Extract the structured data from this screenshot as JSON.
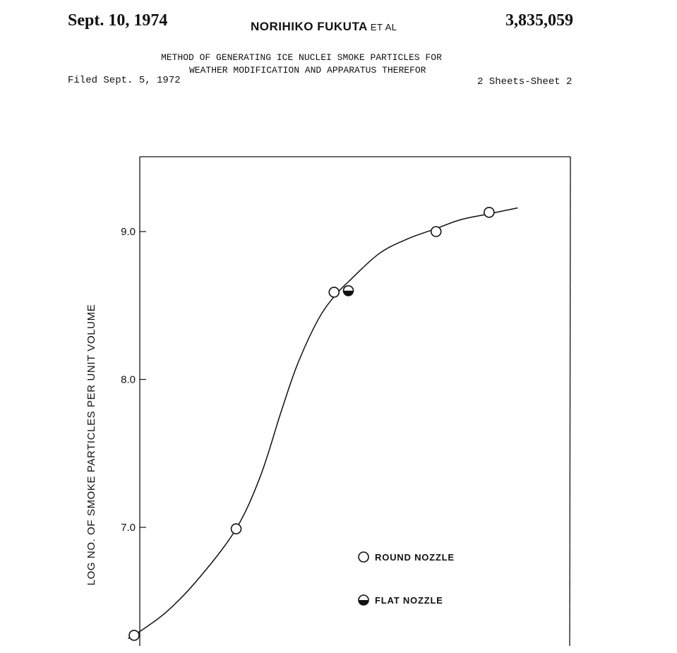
{
  "header": {
    "date": "Sept. 10, 1974",
    "inventor": "NORIHIKO FUKUTA",
    "et_al": "ET AL",
    "patent_number": "3,835,059",
    "title_line1": "METHOD OF GENERATING ICE NUCLEI SMOKE PARTICLES FOR",
    "title_line2": "WEATHER MODIFICATION AND APPARATUS THEREFOR",
    "filed": "Filed Sept. 5, 1972",
    "sheets": "2 Sheets-Sheet 2"
  },
  "chart_data": {
    "type": "scatter",
    "title": "",
    "xlabel": "",
    "ylabel": "LOG NO. OF SMOKE PARTICLES PER UNIT VOLUME",
    "ylim": [
      6.3,
      9.5
    ],
    "xlim": [
      0,
      10
    ],
    "yticks": [
      {
        "value": 9.0,
        "label": "9.0"
      },
      {
        "value": 8.0,
        "label": "8.0"
      },
      {
        "value": 7.0,
        "label": "7.0"
      }
    ],
    "grid": false,
    "legend_position": "lower-right",
    "series": [
      {
        "name": "ROUND NOZZLE",
        "marker": "open-circle",
        "points": [
          {
            "x": 0.0,
            "y": 6.27
          },
          {
            "x": 2.5,
            "y": 6.99
          },
          {
            "x": 4.9,
            "y": 8.59
          },
          {
            "x": 7.4,
            "y": 9.0
          },
          {
            "x": 8.7,
            "y": 9.13
          }
        ]
      },
      {
        "name": "FLAT NOZZLE",
        "marker": "half-filled-circle",
        "points": [
          {
            "x": 5.25,
            "y": 8.6
          }
        ]
      }
    ],
    "fit_curve": {
      "points": [
        {
          "x": -0.15,
          "y": 6.25
        },
        {
          "x": 0.0,
          "y": 6.27
        },
        {
          "x": 0.8,
          "y": 6.43
        },
        {
          "x": 1.6,
          "y": 6.66
        },
        {
          "x": 2.5,
          "y": 6.99
        },
        {
          "x": 3.1,
          "y": 7.35
        },
        {
          "x": 3.6,
          "y": 7.78
        },
        {
          "x": 4.0,
          "y": 8.1
        },
        {
          "x": 4.5,
          "y": 8.4
        },
        {
          "x": 4.9,
          "y": 8.56
        },
        {
          "x": 5.25,
          "y": 8.66
        },
        {
          "x": 6.0,
          "y": 8.85
        },
        {
          "x": 6.7,
          "y": 8.95
        },
        {
          "x": 7.4,
          "y": 9.02
        },
        {
          "x": 8.0,
          "y": 9.08
        },
        {
          "x": 8.7,
          "y": 9.12
        },
        {
          "x": 9.4,
          "y": 9.16
        }
      ]
    }
  }
}
